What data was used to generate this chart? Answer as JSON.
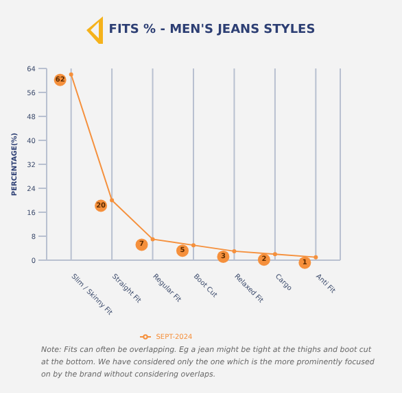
{
  "chart_data": {
    "type": "line",
    "title": "FITS % - MEN'S JEANS STYLES",
    "ylabel": "PERCENTAGE(%)",
    "categories": [
      "Slim / Skinny Fit",
      "Straight Fit",
      "Regular Fit",
      "Boot Cut",
      "Relaxed Fit",
      "Cargo",
      "Anti Fit"
    ],
    "series": [
      {
        "name": "SEPT-2024",
        "color": "#f5903c",
        "values": [
          62,
          20,
          7,
          5,
          3,
          2,
          1
        ]
      }
    ],
    "ylim": [
      0,
      64
    ],
    "yticks": [
      0,
      8,
      16,
      24,
      32,
      40,
      48,
      56,
      64
    ],
    "grid": "x",
    "legend": "bottom",
    "marker": "circle",
    "line_style": "solid",
    "data_labels": true,
    "annotations": [
      "Note: Fits can often be overlapping. Eg a jean might be tight at the thighs and boot cut at the bottom. We have considered only the one which is the more prominently focused on by the brand without considering overlaps."
    ]
  }
}
